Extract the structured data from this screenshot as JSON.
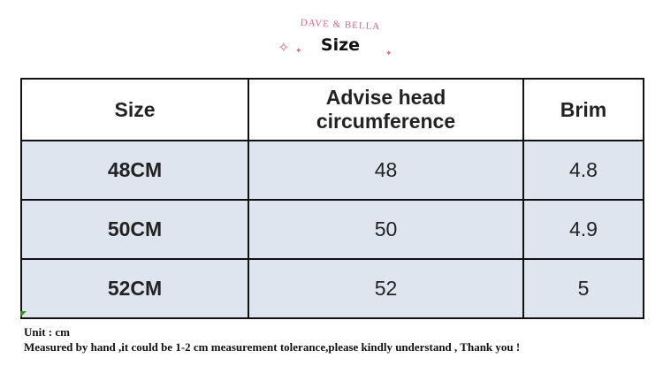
{
  "brand": "DAVE & BELLA",
  "title": "Size",
  "table": {
    "headers": [
      "Size",
      "Advise head circumference",
      "Brim"
    ],
    "rows": [
      [
        "48CM",
        "48",
        "4.8"
      ],
      [
        "50CM",
        "50",
        "4.9"
      ],
      [
        "52CM",
        "52",
        "5"
      ]
    ]
  },
  "notes": {
    "unit": "Unit : cm",
    "tolerance": "Measured by hand ,it could be 1-2 cm measurement tolerance,please kindly understand , Thank you !"
  },
  "colors": {
    "accent": "#e0608e",
    "row_bg": "#dfe5ef"
  }
}
